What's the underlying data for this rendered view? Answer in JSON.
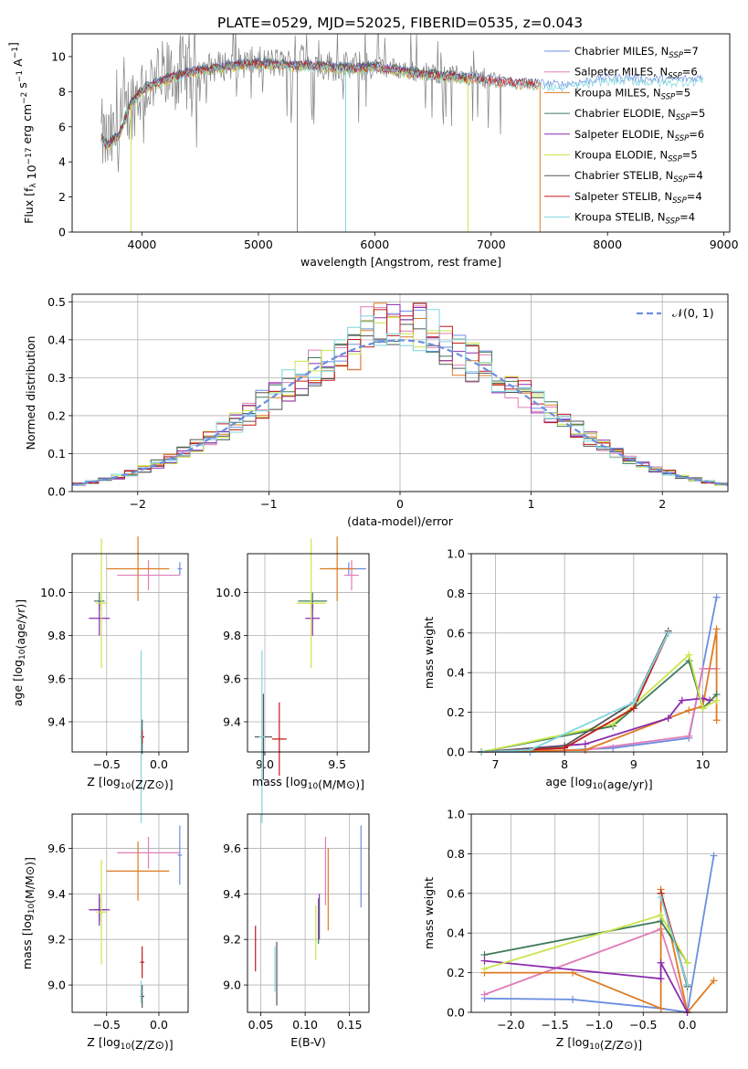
{
  "figure_title": "PLATE=0529, MJD=52025, FIBERID=0535, z=0.043",
  "colors": {
    "Chabrier MILES": "#6b8ee0",
    "Salpeter MILES": "#e07cb8",
    "Kroupa MILES": "#de7b22",
    "Chabrier ELODIE": "#3e7b5a",
    "Salpeter ELODIE": "#8b2bb0",
    "Kroupa ELODIE": "#c8e64a",
    "Chabrier STELIB": "#555555",
    "Salpeter STELIB": "#c01818",
    "Kroupa STELIB": "#7fd6de"
  },
  "chart_data": [
    {
      "id": "spectrum",
      "type": "line",
      "xlabel": "wavelength [Angstrom, rest frame]",
      "ylabel": "Flux [f_λ 10^-17 erg cm^-2 s^-1 A^-1]",
      "xlim": [
        3400,
        9050
      ],
      "ylim": [
        0,
        11.3
      ],
      "xticks": [
        4000,
        5000,
        6000,
        7000,
        8000,
        9000
      ],
      "yticks": [
        0,
        2,
        4,
        6,
        8,
        10
      ],
      "legend_position": "right",
      "legend": [
        {
          "name": "Chabrier MILES",
          "nssp": "7"
        },
        {
          "name": "Salpeter MILES",
          "nssp": "6"
        },
        {
          "name": "Kroupa MILES",
          "nssp": "5"
        },
        {
          "name": "Chabrier ELODIE",
          "nssp": "5"
        },
        {
          "name": "Salpeter ELODIE",
          "nssp": "6"
        },
        {
          "name": "Kroupa ELODIE",
          "nssp": "5"
        },
        {
          "name": "Chabrier STELIB",
          "nssp": "4"
        },
        {
          "name": "Salpeter STELIB",
          "nssp": "4"
        },
        {
          "name": "Kroupa STELIB",
          "nssp": "4"
        }
      ],
      "data_envelope": {
        "x": [
          3650,
          3700,
          3800,
          3900,
          4000,
          4200,
          4400,
          4600,
          4800,
          5000,
          5200,
          5400,
          5600,
          5800,
          6000,
          6200,
          6400,
          6600,
          6800,
          7000,
          7200,
          7400,
          7600,
          7800,
          8000,
          8200,
          8400,
          8600,
          8800
        ],
        "y": [
          5.5,
          5.0,
          5.6,
          7.3,
          8.2,
          8.8,
          9.2,
          9.4,
          9.6,
          9.7,
          9.6,
          9.6,
          9.5,
          9.4,
          9.5,
          9.3,
          9.1,
          9.0,
          8.9,
          8.7,
          8.6,
          8.5,
          8.4,
          8.6,
          8.8,
          8.8,
          8.7,
          8.7,
          8.8
        ]
      }
    },
    {
      "id": "residuals",
      "type": "histogram",
      "xlabel": "(data-model)/error",
      "ylabel": "Normed distribution",
      "xlim": [
        -2.5,
        2.5
      ],
      "ylim": [
        0,
        0.52
      ],
      "xticks": [
        -2,
        -1,
        0,
        1,
        2
      ],
      "yticks": [
        0.0,
        0.1,
        0.2,
        0.3,
        0.4,
        0.5
      ],
      "grid": true,
      "legend_label": "N(0,1)",
      "legend_position": "top-right",
      "bin_width": 0.1,
      "bin_start": -2.5
    },
    {
      "id": "age-vs-Z",
      "type": "errorbar",
      "xlabel": "Z [log10(Z/Z⊙)]",
      "ylabel": "age  [log10(age/yr)]",
      "xlim": [
        -0.83,
        0.28
      ],
      "ylim": [
        9.26,
        10.18
      ],
      "xticks": [
        -0.5,
        0.0
      ],
      "yticks": [
        9.4,
        9.6,
        9.8,
        10.0
      ],
      "points": [
        {
          "model": "Chabrier MILES",
          "x": 0.2,
          "xe": 0.02,
          "y": 10.11,
          "ye": 0.03
        },
        {
          "model": "Salpeter MILES",
          "x": -0.1,
          "xe": 0.3,
          "y": 10.08,
          "ye": 0.07
        },
        {
          "model": "Kroupa MILES",
          "x": -0.2,
          "xe": 0.3,
          "y": 10.11,
          "ye": 0.15
        },
        {
          "model": "Chabrier ELODIE",
          "x": -0.57,
          "xe": 0.05,
          "y": 9.96,
          "ye": 0.04
        },
        {
          "model": "Salpeter ELODIE",
          "x": -0.57,
          "xe": 0.1,
          "y": 9.88,
          "ye": 0.08
        },
        {
          "model": "Kroupa ELODIE",
          "x": -0.55,
          "xe": 0.05,
          "y": 9.95,
          "ye": 0.3
        },
        {
          "model": "Chabrier STELIB",
          "x": -0.16,
          "xe": 0.02,
          "y": 9.33,
          "ye": 0.08
        },
        {
          "model": "Salpeter STELIB",
          "x": -0.16,
          "xe": 0.02,
          "y": 9.33,
          "ye": 0.03
        },
        {
          "model": "Kroupa STELIB",
          "x": -0.17,
          "xe": 0.01,
          "y": 9.33,
          "ye": 0.4
        }
      ]
    },
    {
      "id": "age-vs-mass",
      "type": "errorbar",
      "xlabel": "mass [log10(M/M⊙)]",
      "ylabel": "",
      "xlim": [
        8.88,
        9.72
      ],
      "ylim": [
        9.26,
        10.18
      ],
      "xticks": [
        9.0,
        9.5
      ],
      "yticks": [
        9.4,
        9.6,
        9.8,
        10.0
      ],
      "points": [
        {
          "model": "Chabrier MILES",
          "x": 9.58,
          "xe": 0.12,
          "y": 10.11,
          "ye": 0.03
        },
        {
          "model": "Salpeter MILES",
          "x": 9.6,
          "xe": 0.05,
          "y": 10.08,
          "ye": 0.07
        },
        {
          "model": "Kroupa MILES",
          "x": 9.5,
          "xe": 0.12,
          "y": 10.11,
          "ye": 0.15
        },
        {
          "model": "Chabrier ELODIE",
          "x": 9.33,
          "xe": 0.1,
          "y": 9.96,
          "ye": 0.04
        },
        {
          "model": "Salpeter ELODIE",
          "x": 9.33,
          "xe": 0.05,
          "y": 9.88,
          "ye": 0.08
        },
        {
          "model": "Kroupa ELODIE",
          "x": 9.32,
          "xe": 0.1,
          "y": 9.95,
          "ye": 0.3
        },
        {
          "model": "Chabrier STELIB",
          "x": 8.99,
          "xe": 0.06,
          "y": 9.33,
          "ye": 0.2
        },
        {
          "model": "Salpeter STELIB",
          "x": 9.1,
          "xe": 0.05,
          "y": 9.32,
          "ye": 0.17
        },
        {
          "model": "Kroupa STELIB",
          "x": 8.98,
          "xe": 0.02,
          "y": 9.33,
          "ye": 0.4
        }
      ]
    },
    {
      "id": "massweight-vs-age",
      "type": "line",
      "xlabel": "age  [log10(age/yr)]",
      "ylabel": "mass weight",
      "xlim": [
        6.65,
        10.35
      ],
      "ylim": [
        0,
        1.0
      ],
      "xticks": [
        7,
        8,
        9,
        10
      ],
      "yticks": [
        0.0,
        0.2,
        0.4,
        0.6,
        0.8,
        1.0
      ],
      "grid": true,
      "series": [
        {
          "model": "Chabrier MILES",
          "x": [
            6.8,
            7.5,
            8.7,
            9.8,
            10.2
          ],
          "y": [
            0.0,
            0.0,
            0.02,
            0.07,
            0.78
          ]
        },
        {
          "model": "Salpeter MILES",
          "x": [
            6.8,
            8.3,
            9.8,
            10.0,
            10.2
          ],
          "y": [
            0.0,
            0.01,
            0.08,
            0.42,
            0.42
          ]
        },
        {
          "model": "Kroupa MILES",
          "x": [
            6.8,
            8.3,
            9.8,
            10.0,
            10.2,
            10.2
          ],
          "y": [
            0.0,
            0.01,
            0.21,
            0.23,
            0.62,
            0.16
          ]
        },
        {
          "model": "Chabrier ELODIE",
          "x": [
            6.8,
            8.7,
            9.8,
            10.0,
            10.2
          ],
          "y": [
            0.0,
            0.13,
            0.46,
            0.22,
            0.29
          ]
        },
        {
          "model": "Salpeter ELODIE",
          "x": [
            6.8,
            8.3,
            9.5,
            9.7,
            10.0,
            10.1
          ],
          "y": [
            0.0,
            0.04,
            0.17,
            0.26,
            0.27,
            0.26
          ]
        },
        {
          "model": "Kroupa ELODIE",
          "x": [
            6.8,
            8.7,
            9.8,
            10.0,
            10.2
          ],
          "y": [
            0.0,
            0.14,
            0.49,
            0.22,
            0.26
          ]
        },
        {
          "model": "Chabrier STELIB",
          "x": [
            6.8,
            8.0,
            9.0,
            9.5
          ],
          "y": [
            0.0,
            0.03,
            0.25,
            0.61
          ]
        },
        {
          "model": "Salpeter STELIB",
          "x": [
            6.8,
            8.0,
            9.0,
            9.5
          ],
          "y": [
            0.0,
            0.02,
            0.22,
            0.6
          ]
        },
        {
          "model": "Kroupa STELIB",
          "x": [
            6.8,
            7.5,
            9.0,
            9.5
          ],
          "y": [
            0.0,
            0.01,
            0.25,
            0.6
          ]
        }
      ]
    },
    {
      "id": "mass-vs-Z",
      "type": "errorbar",
      "xlabel": "Z [log10(Z/Z⊙)]",
      "ylabel": "mass [log10(M/M⊙)]",
      "xlim": [
        -0.83,
        0.28
      ],
      "ylim": [
        8.88,
        9.75
      ],
      "xticks": [
        -0.5,
        0.0
      ],
      "yticks": [
        9.0,
        9.2,
        9.4,
        9.6
      ],
      "points": [
        {
          "model": "Chabrier MILES",
          "x": 0.2,
          "xe": 0.02,
          "y": 9.57,
          "ye": 0.13
        },
        {
          "model": "Salpeter MILES",
          "x": -0.1,
          "xe": 0.3,
          "y": 9.58,
          "ye": 0.07
        },
        {
          "model": "Kroupa MILES",
          "x": -0.2,
          "xe": 0.3,
          "y": 9.5,
          "ye": 0.13
        },
        {
          "model": "Chabrier ELODIE",
          "x": -0.57,
          "xe": 0.05,
          "y": 9.33,
          "ye": 0.05
        },
        {
          "model": "Salpeter ELODIE",
          "x": -0.57,
          "xe": 0.1,
          "y": 9.33,
          "ye": 0.07
        },
        {
          "model": "Kroupa ELODIE",
          "x": -0.55,
          "xe": 0.05,
          "y": 9.32,
          "ye": 0.23
        },
        {
          "model": "Chabrier STELIB",
          "x": -0.16,
          "xe": 0.02,
          "y": 8.95,
          "ye": 0.05
        },
        {
          "model": "Salpeter STELIB",
          "x": -0.16,
          "xe": 0.02,
          "y": 9.1,
          "ye": 0.07
        },
        {
          "model": "Kroupa STELIB",
          "x": -0.17,
          "xe": 0.01,
          "y": 8.97,
          "ye": 0.05
        }
      ]
    },
    {
      "id": "mass-vs-ebv",
      "type": "errorbar",
      "xlabel": "E(B-V)",
      "ylabel": "",
      "xlim": [
        0.035,
        0.172
      ],
      "ylim": [
        8.88,
        9.75
      ],
      "xticks": [
        0.05,
        0.1,
        0.15
      ],
      "yticks": [
        9.0,
        9.2,
        9.4,
        9.6
      ],
      "points": [
        {
          "model": "Chabrier MILES",
          "x": 0.163,
          "xe": 0.0,
          "y": 9.52,
          "ye": 0.18
        },
        {
          "model": "Salpeter MILES",
          "x": 0.123,
          "xe": 0.0,
          "y": 9.5,
          "ye": 0.15
        },
        {
          "model": "Kroupa MILES",
          "x": 0.126,
          "xe": 0.0,
          "y": 9.42,
          "ye": 0.18
        },
        {
          "model": "Chabrier ELODIE",
          "x": 0.115,
          "xe": 0.0,
          "y": 9.28,
          "ye": 0.1
        },
        {
          "model": "Salpeter ELODIE",
          "x": 0.116,
          "xe": 0.0,
          "y": 9.3,
          "ye": 0.1
        },
        {
          "model": "Kroupa ELODIE",
          "x": 0.112,
          "xe": 0.0,
          "y": 9.23,
          "ye": 0.12
        },
        {
          "model": "Chabrier STELIB",
          "x": 0.068,
          "xe": 0.0,
          "y": 9.05,
          "ye": 0.14
        },
        {
          "model": "Salpeter STELIB",
          "x": 0.044,
          "xe": 0.0,
          "y": 9.16,
          "ye": 0.1
        },
        {
          "model": "Kroupa STELIB",
          "x": 0.066,
          "xe": 0.0,
          "y": 9.07,
          "ye": 0.1
        }
      ]
    },
    {
      "id": "massweight-vs-Z",
      "type": "line",
      "xlabel": "Z [log10(Z/Z⊙)]",
      "ylabel": "mass weight",
      "xlim": [
        -2.45,
        0.45
      ],
      "ylim": [
        0,
        1.0
      ],
      "xticks": [
        -2.0,
        -1.5,
        -1.0,
        -0.5,
        0.0
      ],
      "yticks": [
        0.0,
        0.2,
        0.4,
        0.6,
        0.8,
        1.0
      ],
      "grid": true,
      "series": [
        {
          "model": "Chabrier MILES",
          "x": [
            -2.3,
            -1.3,
            -0.3,
            0.0,
            0.3
          ],
          "y": [
            0.07,
            0.065,
            0.02,
            0.0,
            0.79
          ]
        },
        {
          "model": "Salpeter MILES",
          "x": [
            -2.3,
            -0.3,
            0.0
          ],
          "y": [
            0.09,
            0.42,
            0.0
          ]
        },
        {
          "model": "Kroupa MILES",
          "x": [
            -2.3,
            -1.3,
            -0.3,
            -0.3,
            0.0,
            0.3
          ],
          "y": [
            0.2,
            0.2,
            0.02,
            0.62,
            0.0,
            0.16
          ]
        },
        {
          "model": "Chabrier ELODIE",
          "x": [
            -2.3,
            -0.3,
            0.0
          ],
          "y": [
            0.29,
            0.46,
            0.25
          ]
        },
        {
          "model": "Salpeter ELODIE",
          "x": [
            -2.3,
            -0.3,
            -0.3,
            0.0
          ],
          "y": [
            0.26,
            0.17,
            0.25,
            0.0
          ]
        },
        {
          "model": "Kroupa ELODIE",
          "x": [
            -2.3,
            -0.3,
            0.0
          ],
          "y": [
            0.22,
            0.49,
            0.25
          ]
        },
        {
          "model": "Chabrier STELIB",
          "x": [
            -0.3,
            0.0
          ],
          "y": [
            0.6,
            0.13
          ]
        },
        {
          "model": "Salpeter STELIB",
          "x": [
            -0.3,
            0.0
          ],
          "y": [
            0.6,
            0.14
          ]
        },
        {
          "model": "Kroupa STELIB",
          "x": [
            -0.3,
            0.0
          ],
          "y": [
            0.58,
            0.14
          ]
        }
      ]
    }
  ]
}
